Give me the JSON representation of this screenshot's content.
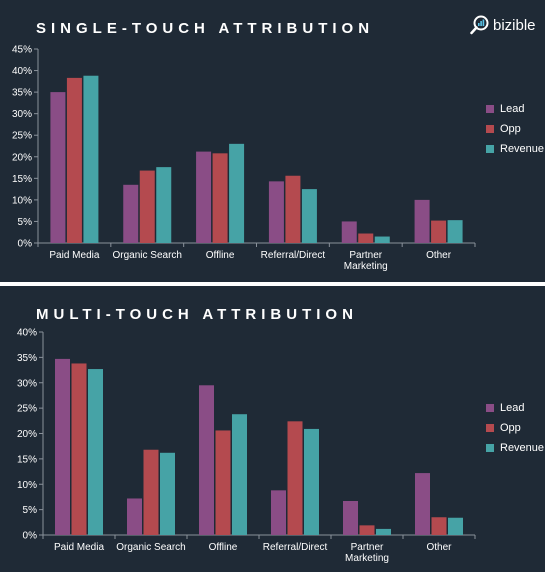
{
  "logo": {
    "text": "bizible",
    "icon": "magnifier-logo-icon"
  },
  "colors": {
    "background": "#1f2a36",
    "lead": "#8a4d86",
    "opp": "#b44a4f",
    "revenue": "#46a3a6",
    "axis": "#8a929b",
    "text": "#ffffff"
  },
  "chart_data": [
    {
      "type": "bar",
      "title": "SINGLE-TOUCH ATTRIBUTION",
      "categories": [
        "Paid Media",
        "Organic Search",
        "Offline",
        "Referral/Direct",
        "Partner\nMarketing",
        "Other"
      ],
      "series": [
        {
          "name": "Lead",
          "values": [
            35,
            13.5,
            21.2,
            14.3,
            5,
            10
          ]
        },
        {
          "name": "Opp",
          "values": [
            38.3,
            16.8,
            20.8,
            15.6,
            2.2,
            5.2
          ]
        },
        {
          "name": "Revenue",
          "values": [
            38.8,
            17.6,
            23,
            12.5,
            1.5,
            5.3
          ]
        }
      ],
      "ylim": [
        0,
        45
      ],
      "yticks": [
        "0%",
        "5%",
        "10%",
        "15%",
        "20%",
        "25%",
        "30%",
        "35%",
        "40%",
        "45%"
      ],
      "legend": "right",
      "grid": false
    },
    {
      "type": "bar",
      "title": "MULTI-TOUCH ATTRIBUTION",
      "categories": [
        "Paid Media",
        "Organic Search",
        "Offline",
        "Referral/Direct",
        "Partner\nMarketing",
        "Other"
      ],
      "series": [
        {
          "name": "Lead",
          "values": [
            34.7,
            7.2,
            29.5,
            8.8,
            6.7,
            12.2
          ]
        },
        {
          "name": "Opp",
          "values": [
            33.8,
            16.8,
            20.6,
            22.4,
            1.9,
            3.5
          ]
        },
        {
          "name": "Revenue",
          "values": [
            32.7,
            16.2,
            23.8,
            20.9,
            1.2,
            3.4
          ]
        }
      ],
      "ylim": [
        0,
        40
      ],
      "yticks": [
        "0%",
        "5%",
        "10%",
        "15%",
        "20%",
        "25%",
        "30%",
        "35%",
        "40%"
      ],
      "legend": "right",
      "grid": false
    }
  ]
}
